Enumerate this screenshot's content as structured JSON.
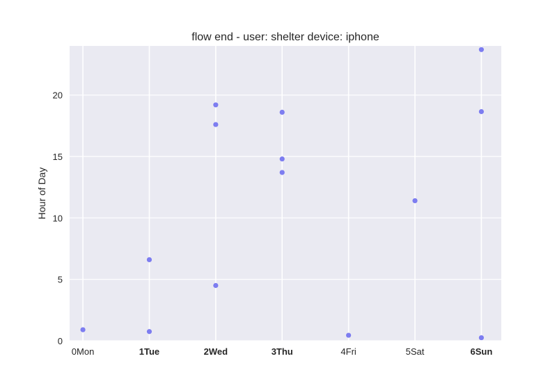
{
  "chart_data": {
    "type": "scatter",
    "title": "flow end - user: shelter device: iphone",
    "xlabel": "",
    "ylabel": "Hour of Day",
    "categories": [
      "0Mon",
      "1Tue",
      "2Wed",
      "3Thu",
      "4Fri",
      "5Sat",
      "6Sun"
    ],
    "bold_categories": [
      "1Tue",
      "2Wed",
      "3Thu",
      "6Sun"
    ],
    "xlim": [
      -0.2,
      6.3
    ],
    "ylim": [
      0,
      24
    ],
    "yticks": [
      0,
      5,
      10,
      15,
      20
    ],
    "grid": true,
    "background_color": "#eaeaf2",
    "grid_color": "#ffffff",
    "point_color": "#7070f0",
    "points": [
      {
        "x": 0,
        "y": 0.9
      },
      {
        "x": 1,
        "y": 6.6
      },
      {
        "x": 1,
        "y": 0.75
      },
      {
        "x": 2,
        "y": 19.2
      },
      {
        "x": 2,
        "y": 17.6
      },
      {
        "x": 2,
        "y": 4.5
      },
      {
        "x": 3,
        "y": 18.6
      },
      {
        "x": 3,
        "y": 14.8
      },
      {
        "x": 3,
        "y": 13.7
      },
      {
        "x": 4,
        "y": 0.45
      },
      {
        "x": 5,
        "y": 11.4
      },
      {
        "x": 6,
        "y": 23.7
      },
      {
        "x": 6,
        "y": 18.65
      },
      {
        "x": 6,
        "y": 0.25
      }
    ]
  }
}
